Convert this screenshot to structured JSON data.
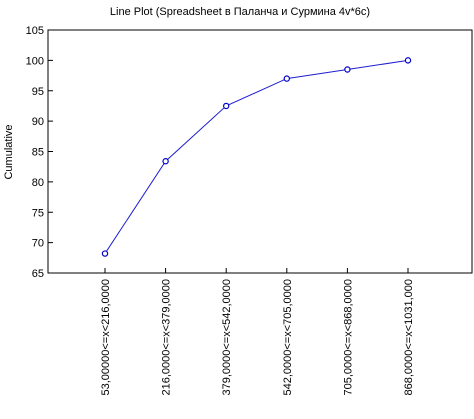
{
  "chart_data": {
    "type": "line",
    "title": "Line Plot (Spreadsheet в Паланча и Сурмина 4v*6c)",
    "xlabel": "",
    "ylabel": "Cumulative",
    "categories": [
      "53,00000<=x<216,0000",
      "216,0000<=x<379,0000",
      "379,0000<=x<542,0000",
      "542,0000<=x<705,0000",
      "705,0000<=x<868,0000",
      "868,0000<=x<1031,000"
    ],
    "series": [
      {
        "values": [
          68.2,
          83.4,
          92.5,
          97.0,
          98.5,
          100.0
        ]
      }
    ],
    "ylim": [
      65,
      105
    ],
    "yticks": [
      "65",
      "70",
      "75",
      "80",
      "85",
      "90",
      "95",
      "100",
      "105"
    ],
    "grid": false,
    "colors": {
      "line": "#1f1fd0",
      "marker": "#0000cc"
    }
  }
}
